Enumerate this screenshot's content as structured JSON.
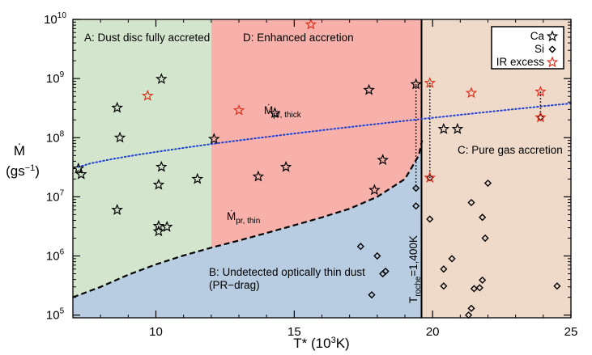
{
  "chart_data": {
    "type": "scatter",
    "title": "",
    "xlabel": {
      "main": "T* (10",
      "sup": "3",
      "rest": "K)"
    },
    "ylabel": {
      "line1": "Ṁ",
      "line2_pre": "(gs",
      "line2_sup": "−1",
      "line2_post": ")"
    },
    "xlim": [
      7,
      25
    ],
    "ylim": [
      90000,
      10000000000
    ],
    "yscale": "log",
    "x_ticks": [
      10,
      15,
      20,
      25
    ],
    "y_ticks": [
      {
        "value": 100000,
        "base": "10",
        "exp": "5"
      },
      {
        "value": 1000000,
        "base": "10",
        "exp": "6"
      },
      {
        "value": 10000000,
        "base": "10",
        "exp": "7"
      },
      {
        "value": 100000000,
        "base": "10",
        "exp": "8"
      },
      {
        "value": 1000000000,
        "base": "10",
        "exp": "9"
      },
      {
        "value": 10000000000,
        "base": "10",
        "exp": "10"
      }
    ],
    "regions": [
      {
        "id": "A",
        "label": "A: Dust disc fully accreted",
        "color": "#d3e6cd"
      },
      {
        "id": "D",
        "label": "D: Enhanced accretion",
        "color": "#f7b1aa"
      },
      {
        "id": "B",
        "label_line1": "B: Undetected optically thin dust",
        "label_line2": "(PR−drag)",
        "color": "#b8cde1"
      },
      {
        "id": "C",
        "label": "C: Pure gas accretion",
        "color": "#efd9c8"
      }
    ],
    "boundaries": {
      "t_split": 12.0,
      "t_roche": 19.6
    },
    "curve_annotations": {
      "thick": {
        "main": "Ṁ",
        "sub": "pr, thick"
      },
      "thin": {
        "main": "Ṁ",
        "sub": "pr, thin"
      },
      "roche": {
        "main": "T",
        "sub": "roche",
        "rest": "=1,400K"
      }
    },
    "legend": {
      "position": "top-right",
      "entries": [
        {
          "label": "Ca",
          "marker": "star",
          "color": "#000000"
        },
        {
          "label": "Si",
          "marker": "diamond",
          "color": "#000000"
        },
        {
          "label": "IR excess",
          "marker": "star",
          "color": "#e0301e"
        }
      ]
    },
    "series": [
      {
        "name": "Ca",
        "marker": "star",
        "points": [
          [
            7.2,
            30000000
          ],
          [
            7.3,
            24000000
          ],
          [
            8.6,
            320000000
          ],
          [
            8.7,
            100000000
          ],
          [
            8.6,
            6000000
          ],
          [
            10.2,
            980000000
          ],
          [
            10.2,
            32000000
          ],
          [
            10.1,
            16000000
          ],
          [
            10.1,
            3200000
          ],
          [
            10.4,
            3100000
          ],
          [
            10.1,
            2600000
          ],
          [
            11.5,
            20000000
          ],
          [
            12.1,
            95000000
          ],
          [
            14.3,
            260000000
          ],
          [
            13.7,
            22000000
          ],
          [
            14.7,
            32000000
          ],
          [
            17.7,
            640000000
          ],
          [
            18.2,
            42000000
          ],
          [
            17.9,
            13000000
          ],
          [
            19.4,
            800000000
          ],
          [
            20.4,
            140000000
          ],
          [
            20.9,
            140000000
          ]
        ]
      },
      {
        "name": "Si",
        "marker": "diamond",
        "points": [
          [
            19.4,
            14000000
          ],
          [
            19.4,
            7000000
          ],
          [
            19.9,
            4200000
          ],
          [
            17.4,
            1450000
          ],
          [
            18.0,
            1000000
          ],
          [
            18.2,
            500000
          ],
          [
            18.3,
            550000
          ],
          [
            17.8,
            220000
          ],
          [
            20.4,
            600000
          ],
          [
            20.7,
            900000
          ],
          [
            20.4,
            310000
          ],
          [
            21.4,
            8000000
          ],
          [
            22.0,
            17000000
          ],
          [
            21.8,
            4500000
          ],
          [
            21.9,
            2000000
          ],
          [
            21.5,
            280000
          ],
          [
            21.7,
            290000
          ],
          [
            21.8,
            390000
          ],
          [
            21.4,
            130000
          ],
          [
            21.3,
            100000
          ],
          [
            24.5,
            310000
          ],
          [
            23.9,
            220000000
          ],
          [
            19.9,
            21000000
          ]
        ]
      },
      {
        "name": "IR excess",
        "marker": "star",
        "points": [
          [
            9.7,
            510000000
          ],
          [
            13.0,
            290000000
          ],
          [
            15.6,
            8200000000
          ],
          [
            19.9,
            840000000
          ],
          [
            21.4,
            570000000
          ],
          [
            23.9,
            600000000
          ],
          [
            23.9,
            220000000
          ],
          [
            19.9,
            21000000
          ]
        ]
      }
    ],
    "dotted_links": [
      [
        [
          19.4,
          800000000
        ],
        [
          19.4,
          14000000
        ]
      ],
      [
        [
          19.9,
          840000000
        ],
        [
          19.9,
          21000000
        ]
      ],
      [
        [
          23.9,
          600000000
        ],
        [
          23.9,
          220000000
        ]
      ]
    ],
    "thick_curve": {
      "x": [
        7.2,
        25
      ],
      "y": [
        32000000,
        380000000
      ],
      "color": "#1e40d8"
    },
    "thin_curve": {
      "points": [
        [
          7.0,
          200000
        ],
        [
          8,
          300000
        ],
        [
          9,
          480000
        ],
        [
          10,
          720000
        ],
        [
          11,
          1020000
        ],
        [
          12,
          1380000
        ],
        [
          13,
          1820000
        ],
        [
          14,
          2450000
        ],
        [
          15,
          3300000
        ],
        [
          16,
          4500000
        ],
        [
          17,
          6300000
        ],
        [
          18,
          10000000
        ],
        [
          19,
          20000000
        ],
        [
          19.5,
          50000000
        ],
        [
          19.62,
          90000000
        ]
      ]
    }
  }
}
